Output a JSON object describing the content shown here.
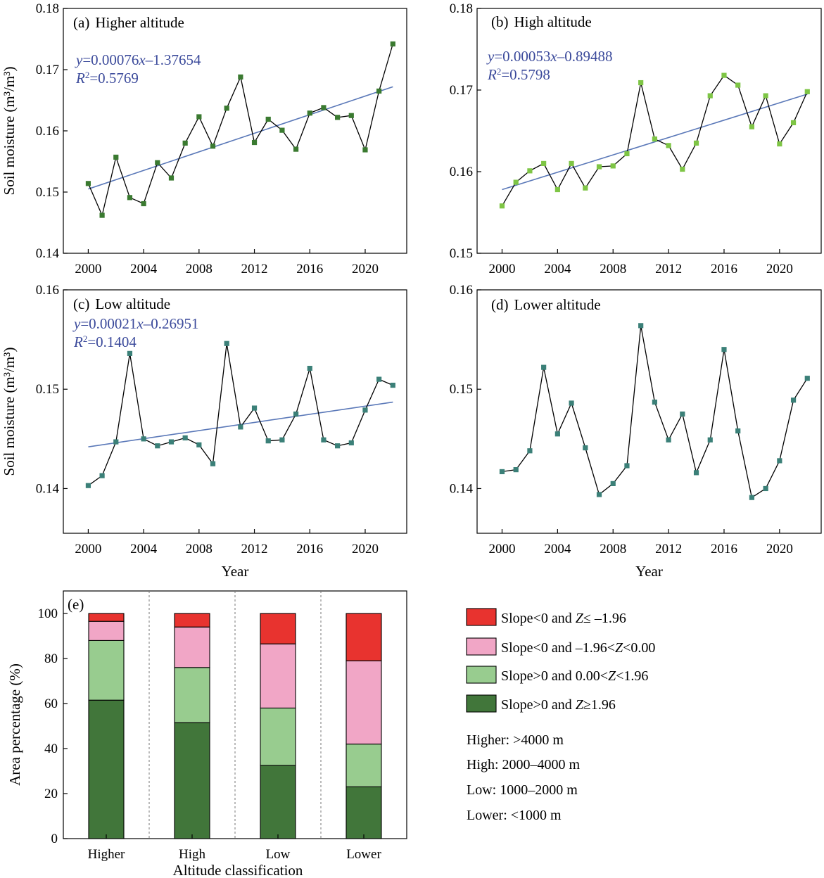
{
  "chart_data": [
    {
      "type": "line",
      "panel": "(a)",
      "title": "Higher altitude",
      "xlabel": "",
      "ylabel": "Soil moisture (m³/m³)",
      "ylim": [
        0.14,
        0.18
      ],
      "xlim": [
        1998.2,
        2023.0
      ],
      "yticks": [
        "0.14",
        "0.15",
        "0.16",
        "0.17",
        "0.18"
      ],
      "xticks": [
        "2000",
        "2004",
        "2008",
        "2012",
        "2016",
        "2020"
      ],
      "marker_color": "#3a7a30",
      "line_color": "#000000",
      "fit_color": "#5a78b8",
      "x": [
        2000,
        2001,
        2002,
        2003,
        2004,
        2005,
        2006,
        2007,
        2008,
        2009,
        2010,
        2011,
        2012,
        2013,
        2014,
        2015,
        2016,
        2017,
        2018,
        2019,
        2020,
        2021,
        2022
      ],
      "series": [
        {
          "values": [
            0.1514,
            0.1462,
            0.1557,
            0.1491,
            0.1481,
            0.1548,
            0.1523,
            0.158,
            0.1623,
            0.1575,
            0.1637,
            0.1688,
            0.1581,
            0.1619,
            0.1601,
            0.157,
            0.1629,
            0.1638,
            0.1622,
            0.1625,
            0.1569,
            0.1665,
            0.1742
          ]
        }
      ],
      "trendline": {
        "x": [
          2000,
          2022
        ],
        "y": [
          0.1505,
          0.1672
        ]
      },
      "equation": {
        "prefix": "y",
        "body": "=0.00076",
        "var": "x",
        "rest": "–1.37654"
      },
      "r2": {
        "label": "R",
        "sup": "2",
        "value": "=0.5769"
      }
    },
    {
      "type": "line",
      "panel": "(b)",
      "title": "High altitude",
      "xlabel": "",
      "ylabel": "",
      "ylim": [
        0.15,
        0.18
      ],
      "xlim": [
        1998.2,
        2023.0
      ],
      "yticks": [
        "0.15",
        "0.16",
        "0.17",
        "0.18"
      ],
      "xticks": [
        "2000",
        "2004",
        "2008",
        "2012",
        "2016",
        "2020"
      ],
      "marker_color": "#7ec545",
      "line_color": "#000000",
      "fit_color": "#5a78b8",
      "x": [
        2000,
        2001,
        2002,
        2003,
        2004,
        2005,
        2006,
        2007,
        2008,
        2009,
        2010,
        2011,
        2012,
        2013,
        2014,
        2015,
        2016,
        2017,
        2018,
        2019,
        2020,
        2021,
        2022
      ],
      "series": [
        {
          "values": [
            0.1558,
            0.1587,
            0.1601,
            0.161,
            0.1578,
            0.161,
            0.158,
            0.1606,
            0.1607,
            0.1622,
            0.1709,
            0.164,
            0.1632,
            0.1603,
            0.1635,
            0.1693,
            0.1718,
            0.1706,
            0.1655,
            0.1693,
            0.1634,
            0.166,
            0.1698
          ]
        }
      ],
      "trendline": {
        "x": [
          2000,
          2022
        ],
        "y": [
          0.1578,
          0.1695
        ]
      },
      "equation": {
        "prefix": "y",
        "body": "=0.00053",
        "var": "x",
        "rest": "–0.89488"
      },
      "r2": {
        "label": "R",
        "sup": "2",
        "value": "=0.5798"
      }
    },
    {
      "type": "line",
      "panel": "(c)",
      "title": "Low altitude",
      "xlabel": "Year",
      "ylabel": "Soil moisture (m³/m³)",
      "ylim": [
        0.1355,
        0.16
      ],
      "xlim": [
        1998.2,
        2023.0
      ],
      "yticks": [
        "0.14",
        "0.15",
        "0.16"
      ],
      "xticks": [
        "2000",
        "2004",
        "2008",
        "2012",
        "2016",
        "2020"
      ],
      "marker_color": "#3b8078",
      "line_color": "#000000",
      "fit_color": "#5a78b8",
      "x": [
        2000,
        2001,
        2002,
        2003,
        2004,
        2005,
        2006,
        2007,
        2008,
        2009,
        2010,
        2011,
        2012,
        2013,
        2014,
        2015,
        2016,
        2017,
        2018,
        2019,
        2020,
        2021,
        2022
      ],
      "series": [
        {
          "values": [
            0.1403,
            0.1413,
            0.1447,
            0.1536,
            0.145,
            0.1443,
            0.1447,
            0.1451,
            0.1444,
            0.1425,
            0.1546,
            0.1462,
            0.1481,
            0.1448,
            0.1449,
            0.1475,
            0.1521,
            0.1449,
            0.1443,
            0.1446,
            0.1479,
            0.151,
            0.1504
          ]
        }
      ],
      "trendline": {
        "x": [
          2000,
          2022
        ],
        "y": [
          0.1442,
          0.1487
        ]
      },
      "equation": {
        "prefix": "y",
        "body": "=0.00021",
        "var": "x",
        "rest": "–0.26951"
      },
      "r2": {
        "label": "R",
        "sup": "2",
        "value": "=0.1404"
      }
    },
    {
      "type": "line",
      "panel": "(d)",
      "title": "Lower altitude",
      "xlabel": "Year",
      "ylabel": "",
      "ylim": [
        0.1355,
        0.16
      ],
      "xlim": [
        1998.2,
        2023.0
      ],
      "yticks": [
        "0.14",
        "0.15",
        "0.16"
      ],
      "xticks": [
        "2000",
        "2004",
        "2008",
        "2012",
        "2016",
        "2020"
      ],
      "marker_color": "#3b8078",
      "line_color": "#000000",
      "x": [
        2000,
        2001,
        2002,
        2003,
        2004,
        2005,
        2006,
        2007,
        2008,
        2009,
        2010,
        2011,
        2012,
        2013,
        2014,
        2015,
        2016,
        2017,
        2018,
        2019,
        2020,
        2021,
        2022
      ],
      "series": [
        {
          "values": [
            0.1417,
            0.1419,
            0.1438,
            0.1522,
            0.1455,
            0.1486,
            0.1441,
            0.1394,
            0.1405,
            0.1423,
            0.1564,
            0.1487,
            0.1449,
            0.1475,
            0.1416,
            0.1449,
            0.154,
            0.1458,
            0.1391,
            0.14,
            0.1428,
            0.1489,
            0.1511
          ]
        }
      ]
    },
    {
      "type": "bar",
      "stacked": true,
      "panel": "(e)",
      "title": "",
      "xlabel": "Altitude classification",
      "ylabel": "Area percentage  (%)",
      "ylim": [
        0,
        110
      ],
      "yticks": [
        "0",
        "20",
        "40",
        "60",
        "80",
        "100"
      ],
      "categories": [
        "Higher",
        "High",
        "Low",
        "Lower"
      ],
      "series": [
        {
          "name": "Slope>0 and Z≥1.96",
          "color": "#41763a",
          "values": [
            61.5,
            51.5,
            32.5,
            23.0
          ]
        },
        {
          "name": "Slope>0 and 0.00<Z<1.96",
          "color": "#98cc8f",
          "values": [
            26.5,
            24.5,
            25.5,
            19.0
          ]
        },
        {
          "name": "Slope<0 and –1.96<Z<0.00",
          "color": "#f1a6c6",
          "values": [
            8.5,
            18.0,
            28.5,
            37.0
          ]
        },
        {
          "name": "Slope<0 and Z≤ –1.96",
          "color": "#e8332f",
          "values": [
            3.5,
            6.0,
            13.5,
            21.0
          ]
        }
      ]
    }
  ],
  "legend": {
    "items": [
      {
        "pre": "Slope<0 and ",
        "var": "Z",
        "post": "≤ –1.96",
        "color": "#e8332f"
      },
      {
        "pre": "Slope<0 and –1.96<",
        "var": "Z",
        "post": "<0.00",
        "color": "#f1a6c6"
      },
      {
        "pre": "Slope>0 and 0.00<",
        "var": "Z",
        "post": "<1.96",
        "color": "#98cc8f"
      },
      {
        "pre": "Slope>0 and ",
        "var": "Z",
        "post": "≥1.96",
        "color": "#41763a"
      }
    ],
    "notes": [
      "Higher: >4000 m",
      "High: 2000–4000 m",
      "Low: 1000–2000 m",
      "Lower: <1000 m"
    ]
  }
}
